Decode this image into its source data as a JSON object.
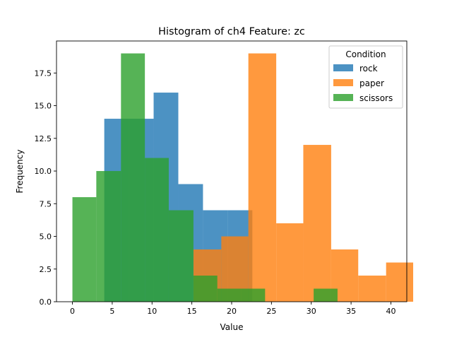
{
  "chart_data": {
    "type": "bar",
    "title": "Histogram of ch4 Feature: zc",
    "xlabel": "Value",
    "ylabel": "Frequency",
    "xlim": [
      -2,
      42
    ],
    "ylim": [
      0,
      19.95
    ],
    "xticks": [
      0,
      5,
      10,
      15,
      20,
      25,
      30,
      35,
      40
    ],
    "yticks": [
      0.0,
      2.5,
      5.0,
      7.5,
      10.0,
      12.5,
      15.0,
      17.5
    ],
    "legend": {
      "title": "Condition",
      "placement": "top-right"
    },
    "grid": false,
    "series": [
      {
        "name": "rock",
        "color": "#1f77b4",
        "bins": [
          {
            "x0": 4.0,
            "x1": 7.1,
            "count": 14
          },
          {
            "x0": 7.1,
            "x1": 10.2,
            "count": 14
          },
          {
            "x0": 10.2,
            "x1": 13.3,
            "count": 16
          },
          {
            "x0": 13.3,
            "x1": 16.4,
            "count": 9
          },
          {
            "x0": 16.4,
            "x1": 19.5,
            "count": 7
          },
          {
            "x0": 19.5,
            "x1": 22.6,
            "count": 7
          }
        ]
      },
      {
        "name": "paper",
        "color": "#ff7f0e",
        "bins": [
          {
            "x0": 15.2,
            "x1": 18.7,
            "count": 4
          },
          {
            "x0": 18.7,
            "x1": 22.1,
            "count": 5
          },
          {
            "x0": 22.1,
            "x1": 25.6,
            "count": 19
          },
          {
            "x0": 25.6,
            "x1": 29.0,
            "count": 6
          },
          {
            "x0": 29.0,
            "x1": 32.5,
            "count": 12
          },
          {
            "x0": 32.5,
            "x1": 35.9,
            "count": 4
          },
          {
            "x0": 35.9,
            "x1": 39.4,
            "count": 2
          },
          {
            "x0": 39.4,
            "x1": 42.8,
            "count": 3
          }
        ]
      },
      {
        "name": "scissors",
        "color": "#2ca02c",
        "bins": [
          {
            "x0": 0.0,
            "x1": 3.0,
            "count": 8
          },
          {
            "x0": 3.0,
            "x1": 6.1,
            "count": 10
          },
          {
            "x0": 6.1,
            "x1": 9.1,
            "count": 19
          },
          {
            "x0": 9.1,
            "x1": 12.1,
            "count": 11
          },
          {
            "x0": 12.1,
            "x1": 15.2,
            "count": 7
          },
          {
            "x0": 15.2,
            "x1": 18.2,
            "count": 2
          },
          {
            "x0": 18.2,
            "x1": 21.2,
            "count": 1
          },
          {
            "x0": 21.2,
            "x1": 24.2,
            "count": 1
          },
          {
            "x0": 24.2,
            "x1": 27.3,
            "count": 0
          },
          {
            "x0": 27.3,
            "x1": 30.3,
            "count": 0
          },
          {
            "x0": 30.3,
            "x1": 33.3,
            "count": 1
          }
        ]
      }
    ]
  }
}
